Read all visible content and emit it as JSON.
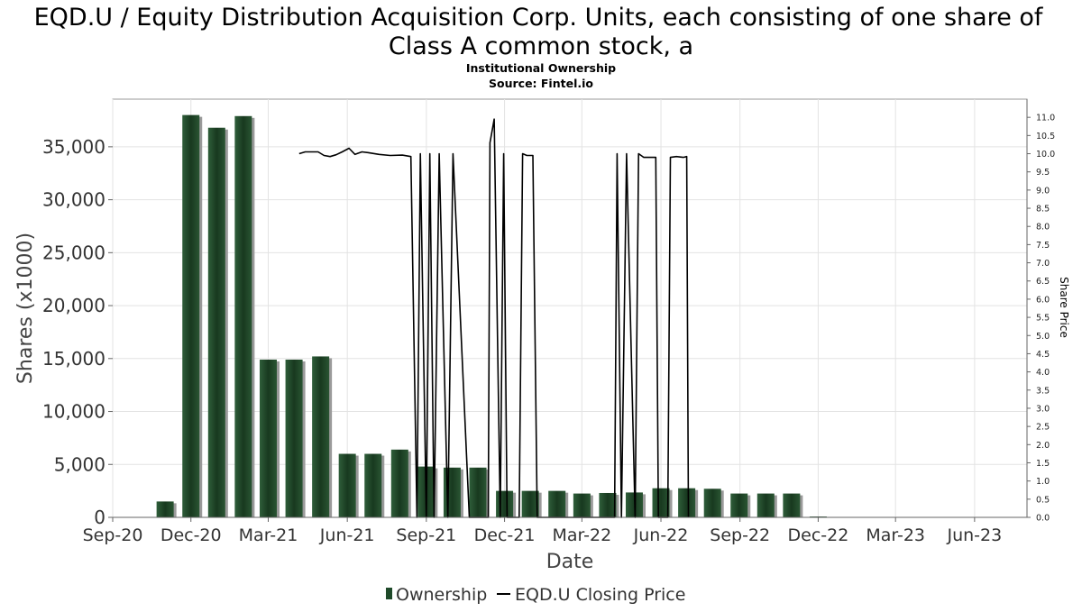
{
  "chart_data": {
    "type": "bar",
    "title_line1": "EQD.U / Equity Distribution Acquisition Corp. Units, each consisting of one share of",
    "title_line2": "Class A common stock, a",
    "subtitle_line1": "Institutional Ownership",
    "subtitle_line2": "Source: Fintel.io",
    "xlabel": "Date",
    "ylabel": "Shares (x1000)",
    "y2label": "Share Price",
    "x_range": [
      "2020-09-01",
      "2023-08-01"
    ],
    "ylim": [
      0,
      39500
    ],
    "y2lim": [
      0,
      11.5
    ],
    "x_ticks": [
      {
        "label": "Sep-20",
        "date": "2020-09-01"
      },
      {
        "label": "Dec-20",
        "date": "2020-12-01"
      },
      {
        "label": "Mar-21",
        "date": "2021-03-01"
      },
      {
        "label": "Jun-21",
        "date": "2021-06-01"
      },
      {
        "label": "Sep-21",
        "date": "2021-09-01"
      },
      {
        "label": "Dec-21",
        "date": "2021-12-01"
      },
      {
        "label": "Mar-22",
        "date": "2022-03-01"
      },
      {
        "label": "Jun-22",
        "date": "2022-06-01"
      },
      {
        "label": "Sep-22",
        "date": "2022-09-01"
      },
      {
        "label": "Dec-22",
        "date": "2022-12-01"
      },
      {
        "label": "Mar-23",
        "date": "2023-03-01"
      },
      {
        "label": "Jun-23",
        "date": "2023-06-01"
      }
    ],
    "y_ticks": [
      {
        "label": "0",
        "value": 0
      },
      {
        "label": "5,000",
        "value": 5000
      },
      {
        "label": "10,000",
        "value": 10000
      },
      {
        "label": "15,000",
        "value": 15000
      },
      {
        "label": "20,000",
        "value": 20000
      },
      {
        "label": "25,000",
        "value": 25000
      },
      {
        "label": "30,000",
        "value": 30000
      },
      {
        "label": "35,000",
        "value": 35000
      }
    ],
    "y2_ticks": [
      {
        "label": "0.0",
        "value": 0.0
      },
      {
        "label": "0.5",
        "value": 0.5
      },
      {
        "label": "1.0",
        "value": 1.0
      },
      {
        "label": "1.5",
        "value": 1.5
      },
      {
        "label": "2.0",
        "value": 2.0
      },
      {
        "label": "2.5",
        "value": 2.5
      },
      {
        "label": "3.0",
        "value": 3.0
      },
      {
        "label": "3.5",
        "value": 3.5
      },
      {
        "label": "4.0",
        "value": 4.0
      },
      {
        "label": "4.5",
        "value": 4.5
      },
      {
        "label": "5.0",
        "value": 5.0
      },
      {
        "label": "5.5",
        "value": 5.5
      },
      {
        "label": "6.0",
        "value": 6.0
      },
      {
        "label": "6.5",
        "value": 6.5
      },
      {
        "label": "7.0",
        "value": 7.0
      },
      {
        "label": "7.5",
        "value": 7.5
      },
      {
        "label": "8.0",
        "value": 8.0
      },
      {
        "label": "8.5",
        "value": 8.5
      },
      {
        "label": "9.0",
        "value": 9.0
      },
      {
        "label": "9.5",
        "value": 9.5
      },
      {
        "label": "10.0",
        "value": 10.0
      },
      {
        "label": "10.5",
        "value": 10.5
      },
      {
        "label": "11.0",
        "value": 11.0
      }
    ],
    "grid": true,
    "legend_position": "bottom",
    "legend": [
      {
        "label": "Ownership",
        "kind": "bar",
        "color": "#1f4a2a"
      },
      {
        "label": "EQD.U Closing Price",
        "kind": "line",
        "color": "#000000"
      }
    ],
    "series": [
      {
        "name": "Ownership",
        "kind": "bar",
        "color": "#1f4a2a",
        "points": [
          {
            "date": "2020-11-01",
            "value": 1500
          },
          {
            "date": "2020-12-01",
            "value": 38000
          },
          {
            "date": "2020-12-31",
            "value": 36800
          },
          {
            "date": "2021-01-31",
            "value": 37900
          },
          {
            "date": "2021-03-01",
            "value": 14900
          },
          {
            "date": "2021-03-31",
            "value": 14900
          },
          {
            "date": "2021-05-01",
            "value": 15200
          },
          {
            "date": "2021-06-01",
            "value": 6000
          },
          {
            "date": "2021-07-01",
            "value": 6000
          },
          {
            "date": "2021-08-01",
            "value": 6400
          },
          {
            "date": "2021-09-01",
            "value": 4800
          },
          {
            "date": "2021-10-01",
            "value": 4700
          },
          {
            "date": "2021-10-31",
            "value": 4700
          },
          {
            "date": "2021-12-01",
            "value": 2500
          },
          {
            "date": "2021-12-31",
            "value": 2500
          },
          {
            "date": "2022-01-31",
            "value": 2500
          },
          {
            "date": "2022-03-01",
            "value": 2250
          },
          {
            "date": "2022-03-31",
            "value": 2300
          },
          {
            "date": "2022-05-01",
            "value": 2350
          },
          {
            "date": "2022-06-01",
            "value": 2750
          },
          {
            "date": "2022-07-01",
            "value": 2750
          },
          {
            "date": "2022-07-31",
            "value": 2700
          },
          {
            "date": "2022-08-31",
            "value": 2250
          },
          {
            "date": "2022-10-01",
            "value": 2250
          },
          {
            "date": "2022-10-31",
            "value": 2250
          },
          {
            "date": "2022-12-01",
            "value": 80
          },
          {
            "date": "2023-06-01",
            "value": 40
          }
        ]
      },
      {
        "name": "EQD.U Closing Price",
        "kind": "line",
        "color": "#000000",
        "points": [
          {
            "date": "2021-04-06",
            "value": 10.0
          },
          {
            "date": "2021-04-13",
            "value": 10.05
          },
          {
            "date": "2021-04-20",
            "value": 10.05
          },
          {
            "date": "2021-04-28",
            "value": 10.05
          },
          {
            "date": "2021-05-05",
            "value": 9.95
          },
          {
            "date": "2021-05-12",
            "value": 9.92
          },
          {
            "date": "2021-05-19",
            "value": 9.97
          },
          {
            "date": "2021-05-26",
            "value": 10.05
          },
          {
            "date": "2021-06-03",
            "value": 10.15
          },
          {
            "date": "2021-06-10",
            "value": 9.98
          },
          {
            "date": "2021-06-18",
            "value": 10.05
          },
          {
            "date": "2021-06-25",
            "value": 10.03
          },
          {
            "date": "2021-07-08",
            "value": 9.98
          },
          {
            "date": "2021-07-21",
            "value": 9.95
          },
          {
            "date": "2021-08-04",
            "value": 9.96
          },
          {
            "date": "2021-08-14",
            "value": 9.92
          },
          {
            "date": "2021-08-21",
            "value": 0.0
          },
          {
            "date": "2021-08-25",
            "value": 10.0
          },
          {
            "date": "2021-09-01",
            "value": 0.0
          },
          {
            "date": "2021-09-05",
            "value": 10.0
          },
          {
            "date": "2021-09-10",
            "value": 0.0
          },
          {
            "date": "2021-09-16",
            "value": 10.0
          },
          {
            "date": "2021-09-26",
            "value": 0.0
          },
          {
            "date": "2021-10-02",
            "value": 10.0
          },
          {
            "date": "2021-10-21",
            "value": 0.0
          },
          {
            "date": "2021-11-12",
            "value": 0.0
          },
          {
            "date": "2021-11-14",
            "value": 10.3
          },
          {
            "date": "2021-11-19",
            "value": 10.95
          },
          {
            "date": "2021-11-26",
            "value": 0.0
          },
          {
            "date": "2021-11-30",
            "value": 10.0
          },
          {
            "date": "2021-12-04",
            "value": 0.0
          },
          {
            "date": "2021-12-18",
            "value": 0.0
          },
          {
            "date": "2021-12-22",
            "value": 10.0
          },
          {
            "date": "2021-12-27",
            "value": 9.95
          },
          {
            "date": "2022-01-03",
            "value": 9.95
          },
          {
            "date": "2022-01-08",
            "value": 0.0
          },
          {
            "date": "2022-04-08",
            "value": 0.0
          },
          {
            "date": "2022-04-11",
            "value": 10.0
          },
          {
            "date": "2022-04-16",
            "value": 0.0
          },
          {
            "date": "2022-04-22",
            "value": 10.0
          },
          {
            "date": "2022-05-02",
            "value": 0.0
          },
          {
            "date": "2022-05-06",
            "value": 10.0
          },
          {
            "date": "2022-05-12",
            "value": 9.9
          },
          {
            "date": "2022-05-26",
            "value": 9.9
          },
          {
            "date": "2022-05-29",
            "value": 0.0
          },
          {
            "date": "2022-06-09",
            "value": 0.0
          },
          {
            "date": "2022-06-12",
            "value": 9.9
          },
          {
            "date": "2022-06-19",
            "value": 9.92
          },
          {
            "date": "2022-06-27",
            "value": 9.9
          },
          {
            "date": "2022-07-01",
            "value": 9.92
          },
          {
            "date": "2022-07-03",
            "value": 0.0
          }
        ]
      }
    ]
  }
}
